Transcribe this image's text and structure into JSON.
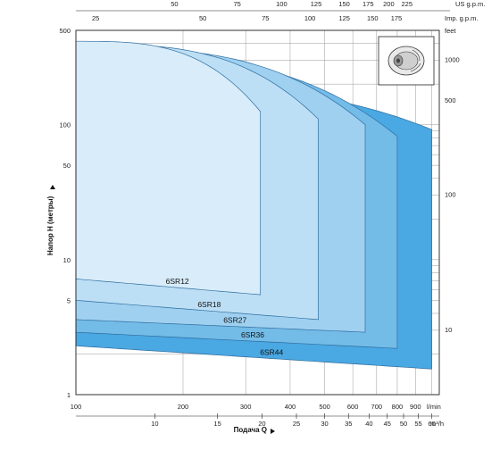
{
  "chart_data": {
    "type": "area",
    "scale": "log-log",
    "xlabel": "Подача Q",
    "ylabel": "Напор H (метры)",
    "x_primary": {
      "unit": "l/min",
      "ticks": [
        "100",
        "200",
        "300",
        "400",
        "500",
        "600",
        "700",
        "800",
        "900"
      ],
      "values": [
        100,
        200,
        300,
        400,
        500,
        600,
        700,
        800,
        900
      ],
      "range": [
        100,
        1050
      ]
    },
    "x_m3h": {
      "unit": "m³/h",
      "ticks": [
        "10",
        "15",
        "20",
        "25",
        "30",
        "35",
        "40",
        "45",
        "50",
        "55",
        "60"
      ],
      "values": [
        10,
        15,
        20,
        25,
        30,
        35,
        40,
        45,
        50,
        55,
        60
      ]
    },
    "x_us_gpm": {
      "unit": "US g.p.m.",
      "ticks": [
        "50",
        "75",
        "100",
        "125",
        "150",
        "175",
        "200",
        "225"
      ],
      "values": [
        50,
        75,
        100,
        125,
        150,
        175,
        200,
        225
      ]
    },
    "x_imp_gpm": {
      "unit": "Imp. g.p.m.",
      "ticks": [
        "25",
        "50",
        "75",
        "100",
        "125",
        "150",
        "175"
      ],
      "values": [
        25,
        50,
        75,
        100,
        125,
        150,
        175
      ]
    },
    "y_primary": {
      "ticks": [
        "500",
        "100",
        "50",
        "10",
        "5",
        "1"
      ],
      "values": [
        500,
        100,
        50,
        10,
        5,
        1
      ],
      "range": [
        1,
        500
      ]
    },
    "y_feet": {
      "unit": "feet",
      "ticks": [
        "1000",
        "500",
        "100",
        "10"
      ],
      "values": [
        1000,
        500,
        100,
        10
      ]
    },
    "series": [
      {
        "name": "6SR44",
        "q_max": 1000,
        "h_top_start": 200,
        "h_top_end": 92,
        "h_bot_start": 2.3,
        "h_bot_end": 1.55,
        "color": "#4aa8e2"
      },
      {
        "name": "6SR36",
        "q_max": 800,
        "h_top_start": 330,
        "h_top_end": 82,
        "h_bot_start": 2.9,
        "h_bot_end": 2.2,
        "color": "#74bce8"
      },
      {
        "name": "6SR27",
        "q_max": 650,
        "h_top_start": 370,
        "h_top_end": 100,
        "h_bot_start": 3.6,
        "h_bot_end": 2.9,
        "color": "#9fd0f0"
      },
      {
        "name": "6SR18",
        "q_max": 480,
        "h_top_start": 395,
        "h_top_end": 110,
        "h_bot_start": 5.0,
        "h_bot_end": 3.6,
        "color": "#bddff5"
      },
      {
        "name": "6SR12",
        "q_max": 330,
        "h_top_start": 415,
        "h_top_end": 125,
        "h_bot_start": 7.2,
        "h_bot_end": 5.5,
        "color": "#d8ecf9"
      }
    ]
  }
}
